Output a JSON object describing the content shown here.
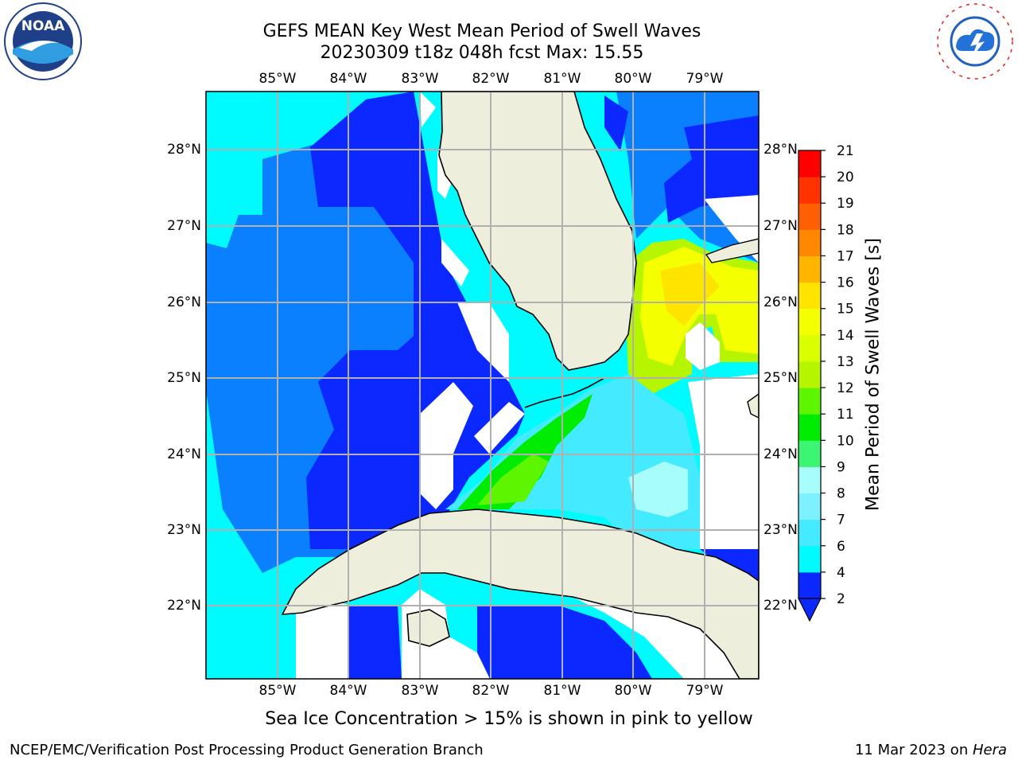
{
  "header": {
    "title_line1": "GEFS MEAN Key West Mean Period of Swell Waves",
    "title_line2": "20230309 t18z 048h fcst   Max: 15.55"
  },
  "logos": {
    "left": {
      "name": "noaa-logo",
      "text": "NOAA"
    },
    "right": {
      "name": "nws-logo",
      "text": "NATIONAL WEATHER SERVICE"
    }
  },
  "map": {
    "lon_ticks": [
      "85°W",
      "84°W",
      "83°W",
      "82°W",
      "81°W",
      "80°W",
      "79°W"
    ],
    "lat_ticks": [
      "28°N",
      "27°N",
      "26°N",
      "25°N",
      "24°N",
      "23°N",
      "22°N"
    ]
  },
  "colorbar": {
    "label": "Mean Period of Swell Waves [s]",
    "levels": [
      "2",
      "4",
      "6",
      "7",
      "8",
      "9",
      "10",
      "11",
      "12",
      "13",
      "14",
      "15",
      "16",
      "17",
      "18",
      "19",
      "20",
      "21"
    ],
    "tick_labels": [
      "21",
      "20",
      "19",
      "18",
      "17",
      "16",
      "15",
      "14",
      "13",
      "12",
      "11",
      "10",
      "9",
      "8",
      "7",
      "6",
      "4",
      "2"
    ],
    "colors": [
      "#0a28ff",
      "#00fbff",
      "#44eaff",
      "#7df1ff",
      "#a6fdf9",
      "#3bf573",
      "#00ec00",
      "#5ef500",
      "#b5f500",
      "#d9ff00",
      "#f4ff00",
      "#ffe400",
      "#ffb400",
      "#ff8800",
      "#ff5f00",
      "#ff3300",
      "#ff0000"
    ]
  },
  "note": "Sea Ice Concentration > 15% is shown in pink to yellow",
  "footer": {
    "left": "NCEP/EMC/Verification Post Processing Product Generation Branch",
    "right_date": "11 Mar 2023 on ",
    "right_host": "Hera"
  }
}
